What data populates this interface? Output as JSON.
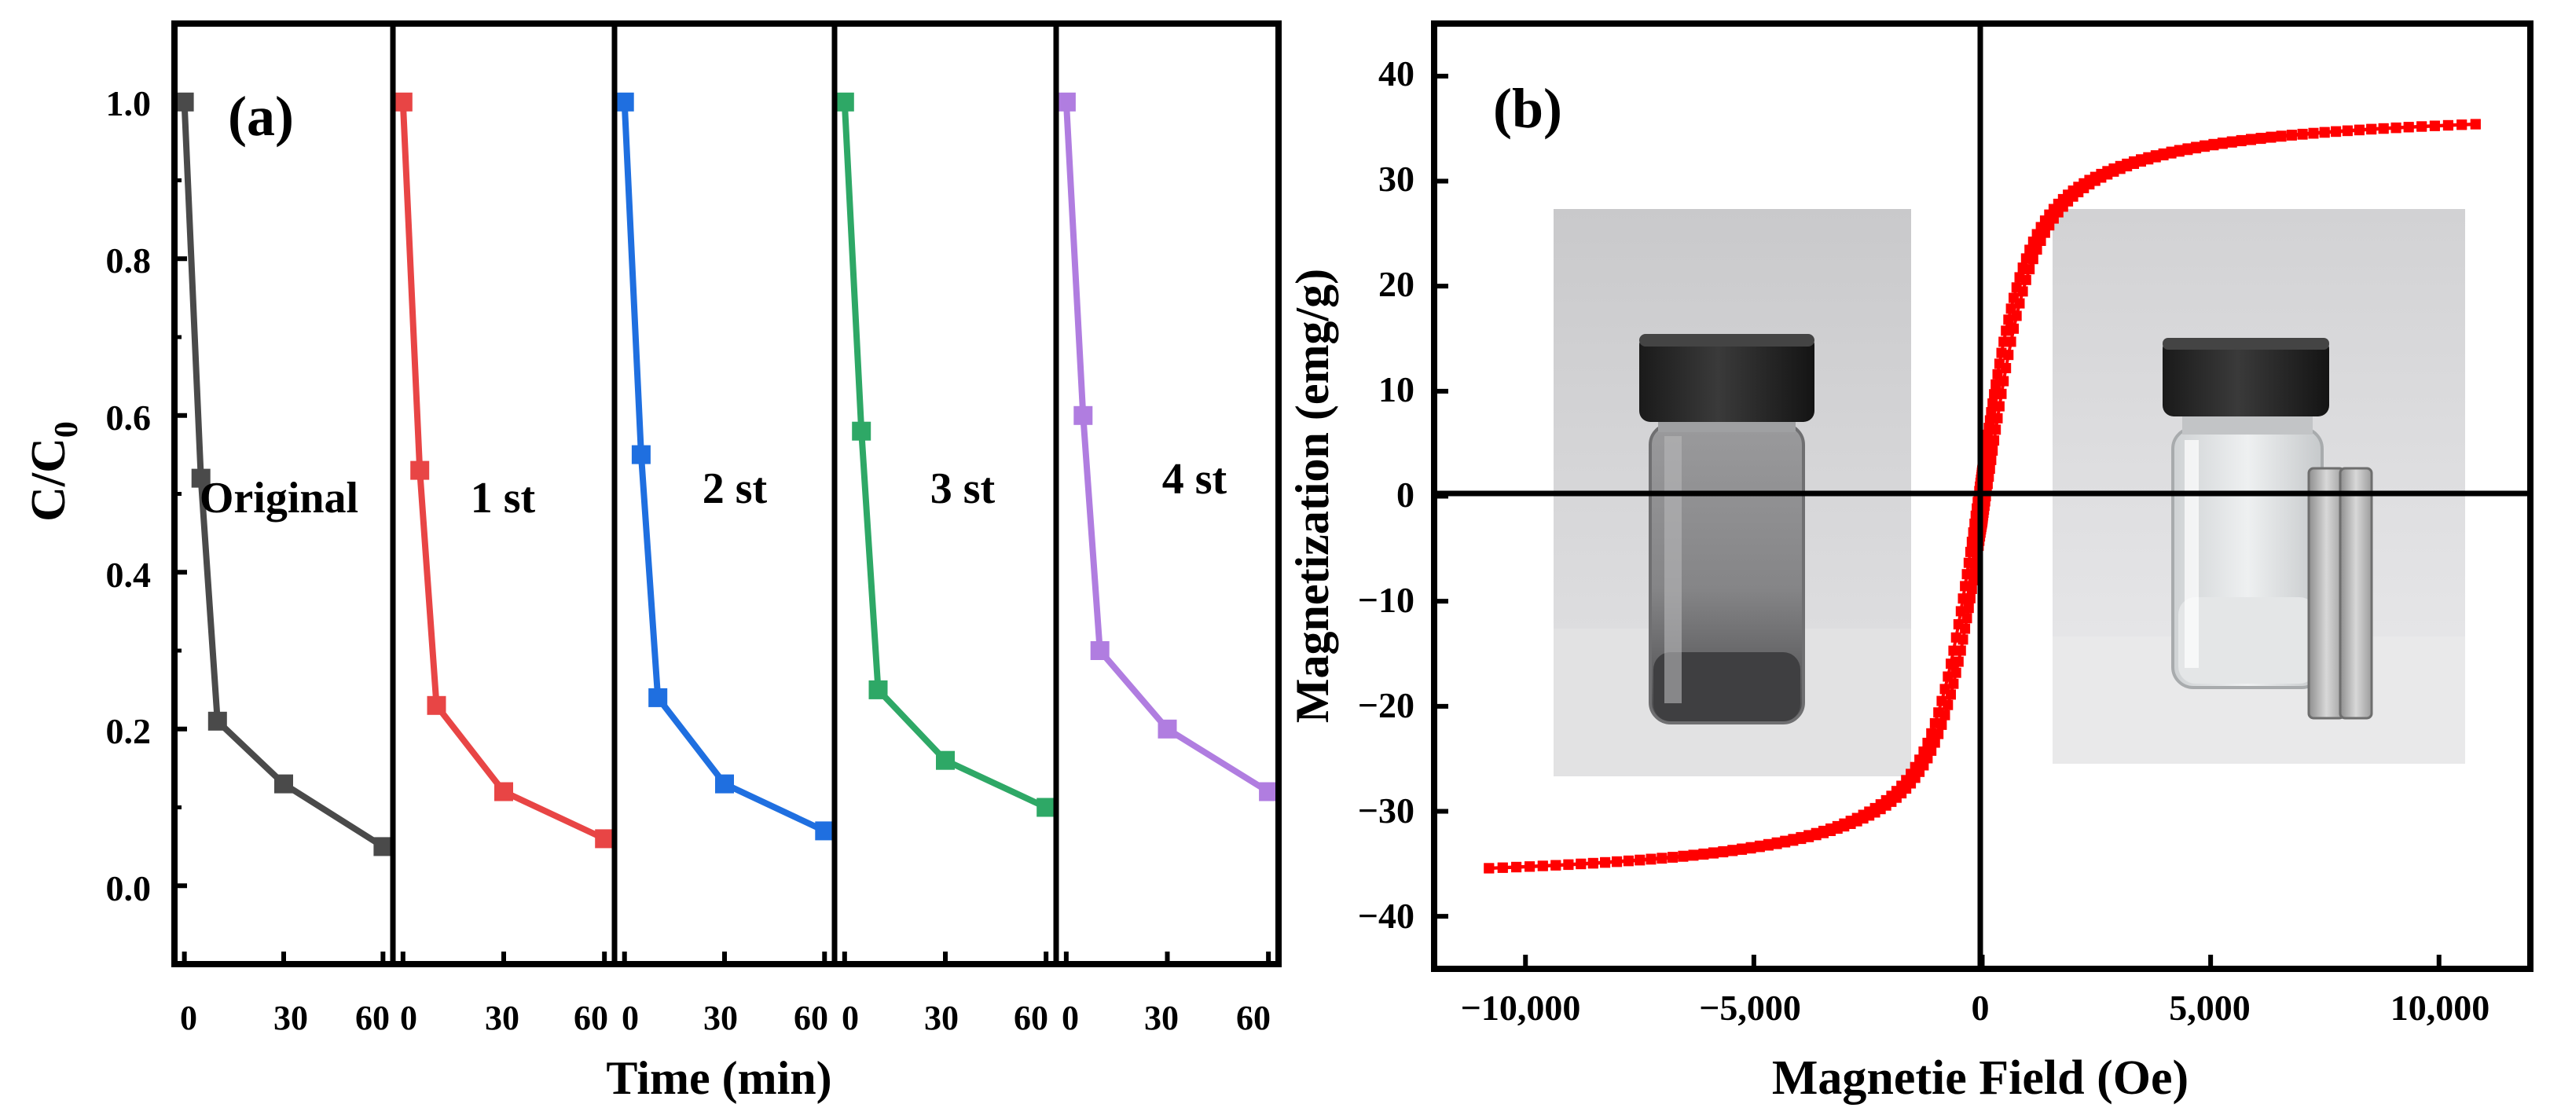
{
  "chart_data": [
    {
      "type": "line",
      "panel_label": "(a)",
      "ylabel_main": "C/C",
      "ylabel_sub": "0",
      "xlabel": "Time (min)",
      "ylim": [
        -0.1,
        1.1
      ],
      "yticks": [
        0.0,
        0.2,
        0.4,
        0.6,
        0.8,
        1.0
      ],
      "ytick_labels": [
        "0.0",
        "0.2",
        "0.4",
        "0.6",
        "0.8",
        "1.0"
      ],
      "xlim": [
        -3,
        63
      ],
      "xticks": [
        0,
        30,
        60
      ],
      "xtick_labels": [
        "0",
        "30",
        "60"
      ],
      "series": [
        {
          "name": "Original",
          "color": "#4a4a4a",
          "x": [
            0,
            10,
            30,
            60
          ],
          "y": [
            1.0,
            0.21,
            0.13,
            0.05
          ],
          "x_mid": [
            5
          ],
          "y_mid": [
            0.52
          ]
        },
        {
          "name": "1 st",
          "color": "#e84545",
          "x": [
            0,
            10,
            30,
            60
          ],
          "y": [
            1.0,
            0.23,
            0.12,
            0.06
          ],
          "x_mid": [
            5
          ],
          "y_mid": [
            0.53
          ]
        },
        {
          "name": "2 st",
          "color": "#1f6fe0",
          "x": [
            0,
            10,
            30,
            60
          ],
          "y": [
            1.0,
            0.24,
            0.13,
            0.07
          ],
          "x_mid": [
            5
          ],
          "y_mid": [
            0.55
          ]
        },
        {
          "name": "3 st",
          "color": "#2ea866",
          "x": [
            0,
            10,
            30,
            60
          ],
          "y": [
            1.0,
            0.25,
            0.16,
            0.1
          ],
          "x_mid": [
            5
          ],
          "y_mid": [
            0.58
          ]
        },
        {
          "name": "4 st",
          "color": "#b07de0",
          "x": [
            0,
            10,
            30,
            60
          ],
          "y": [
            1.0,
            0.3,
            0.2,
            0.12
          ],
          "x_mid": [
            5
          ],
          "y_mid": [
            0.6
          ]
        }
      ]
    },
    {
      "type": "scatter",
      "panel_label": "(b)",
      "xlabel": "Magnetie Field (Oe)",
      "ylabel": "Magnetization (emg/g)",
      "xlim": [
        -12000,
        12000
      ],
      "ylim": [
        -45,
        45
      ],
      "xticks": [
        -10000,
        -5000,
        0,
        5000,
        10000
      ],
      "xtick_labels": [
        "−10,000",
        "−5,000",
        "0",
        "5,000",
        "10,000"
      ],
      "yticks": [
        -40,
        -30,
        -20,
        -10,
        0,
        10,
        20,
        30,
        40
      ],
      "ytick_labels": [
        "−40",
        "−30",
        "−20",
        "−10",
        "0",
        "10",
        "20",
        "30",
        "40"
      ],
      "color": "#ff0000",
      "field_max": 10800,
      "saturation_magnetization": 38.6,
      "coercivity": 80,
      "curve_width": 850
    }
  ]
}
